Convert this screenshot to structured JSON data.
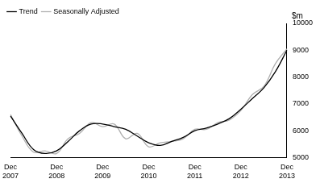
{
  "chart_data": {
    "type": "line",
    "y_label": "$m",
    "categories": [
      "Dec 2007",
      null,
      null,
      null,
      "Dec 2008",
      null,
      null,
      null,
      "Dec 2009",
      null,
      null,
      null,
      "Dec 2010",
      null,
      null,
      null,
      "Dec 2011",
      null,
      null,
      null,
      "Dec 2012",
      null,
      null,
      null,
      "Dec 2013"
    ],
    "series": [
      {
        "name": "Trend",
        "color": "#000000",
        "values": [
          6550,
          5900,
          5300,
          5150,
          5250,
          5600,
          6000,
          6250,
          6250,
          6150,
          6050,
          5800,
          5550,
          5450,
          5600,
          5750,
          6000,
          6100,
          6250,
          6450,
          6800,
          7200,
          7600,
          8200,
          9000
        ]
      },
      {
        "name": "Seasonally Adjusted",
        "color": "#b0b0b0",
        "values": [
          6600,
          5800,
          5200,
          5250,
          5150,
          5700,
          5900,
          6300,
          6150,
          6250,
          5700,
          5900,
          5400,
          5550,
          5600,
          5700,
          6050,
          6050,
          6300,
          6400,
          6750,
          7350,
          7650,
          8500,
          9050
        ]
      }
    ],
    "ylim": [
      5000,
      10000
    ],
    "yticks": [
      5000,
      6000,
      7000,
      8000,
      9000,
      10000
    ],
    "grid": false,
    "legend": "top-left"
  }
}
